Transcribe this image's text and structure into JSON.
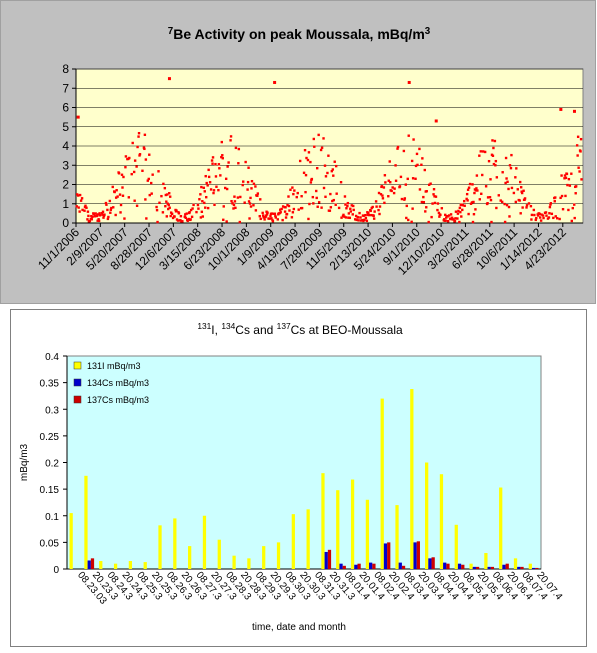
{
  "chart_data": [
    {
      "type": "scatter",
      "title": "Be Activity on peak Moussala,  mBq/m",
      "title_prefix_sup": "7",
      "title_suffix_sup": "3",
      "xlabel": "",
      "ylabel": "",
      "ylim": [
        0,
        8
      ],
      "yticks": [
        0,
        1,
        2,
        3,
        4,
        5,
        6,
        7,
        8
      ],
      "x_range": [
        "2006-11-01",
        "2012-07-15"
      ],
      "x_tick_labels": [
        "11/1/2006",
        "2/9/2007",
        "5/20/2007",
        "8/28/2007",
        "12/6/2007",
        "3/15/2008",
        "6/23/2008",
        "10/1/2008",
        "1/9/2009",
        "4/19/2009",
        "7/28/2009",
        "11/5/2009",
        "2/13/2010",
        "5/24/2010",
        "9/1/2010",
        "12/10/2010",
        "3/20/2011",
        "6/28/2011",
        "10/6/2011",
        "1/14/2012",
        "4/23/2012"
      ],
      "marker_color": "#ff0000",
      "plot_background": "#ffffcc",
      "grid": true,
      "notable_points": [
        {
          "date": "2006-11-10",
          "value": 5.5
        },
        {
          "date": "2007-11-20",
          "value": 7.5
        },
        {
          "date": "2009-01-25",
          "value": 7.3
        },
        {
          "date": "2010-08-01",
          "value": 7.3
        },
        {
          "date": "2010-11-20",
          "value": 5.3
        },
        {
          "date": "2012-04-15",
          "value": 5.9
        },
        {
          "date": "2012-06-10",
          "value": 5.8
        }
      ]
    },
    {
      "type": "bar",
      "title_parts": [
        {
          "sup": "131",
          "text": "I, "
        },
        {
          "sup": "134",
          "text": "Cs and "
        },
        {
          "sup": "137",
          "text": "Cs  at BEO-Moussala"
        }
      ],
      "xlabel": "time, date and month",
      "ylabel": "mBq/m3",
      "ylim": [
        0,
        0.4
      ],
      "yticks": [
        "0",
        "0.05",
        "0.1",
        "0.15",
        "0.2",
        "0.25",
        "0.3",
        "0.35",
        "0.4"
      ],
      "plot_background": "#ccffff",
      "legend_position": "top-left",
      "categories": [
        "08.23.03",
        "20.23.3",
        "08.24.3",
        "20.24.3",
        "08.25.3",
        "20.25.3",
        "08.26.3",
        "20.26.3",
        "08.27.3",
        "20.27.3",
        "08.28.3",
        "20.28.3",
        "08.29.3",
        "20.29.3",
        "08.30.3",
        "20.30.3",
        "08.31.3",
        "20.31.3",
        "08.01.4",
        "20.01.4",
        "08.02.4",
        "20.02.4",
        "08.03.4",
        "20.03.4",
        "08.04.4",
        "20.04.4",
        "08.05.4",
        "20.05.4",
        "08.06.4",
        "20.06.4",
        "08.07.4",
        "20.07.4"
      ],
      "series": [
        {
          "name": "131I mBq/m3",
          "color": "#ffff00",
          "values": [
            0.105,
            0.175,
            0.015,
            0.01,
            0.015,
            0.013,
            0.082,
            0.095,
            0.043,
            0.1,
            0.055,
            0.025,
            0.02,
            0.043,
            0.05,
            0.103,
            0.112,
            0.18,
            0.148,
            0.168,
            0.13,
            0.32,
            0.12,
            0.338,
            0.2,
            0.178,
            0.083,
            0.01,
            0.03,
            0.153,
            0.02,
            0.01
          ]
        },
        {
          "name": "134Cs  mBq/m3",
          "color": "#0000cc",
          "values": [
            0,
            0.016,
            0,
            0,
            0,
            0,
            0,
            0,
            0,
            0,
            0,
            0,
            0,
            0,
            0,
            0,
            0,
            0.032,
            0.01,
            0.008,
            0.012,
            0.048,
            0.012,
            0.05,
            0.02,
            0.012,
            0.01,
            0.004,
            0.004,
            0.008,
            0.004,
            0.002
          ]
        },
        {
          "name": "137Cs  mBq/m3",
          "color": "#cc0000",
          "values": [
            0,
            0.02,
            0,
            0,
            0,
            0,
            0,
            0,
            0,
            0,
            0,
            0,
            0,
            0,
            0,
            0,
            0,
            0.036,
            0.006,
            0.01,
            0.01,
            0.05,
            0.006,
            0.052,
            0.022,
            0.01,
            0.008,
            0.004,
            0.004,
            0.01,
            0.004,
            0.002
          ]
        }
      ]
    }
  ]
}
